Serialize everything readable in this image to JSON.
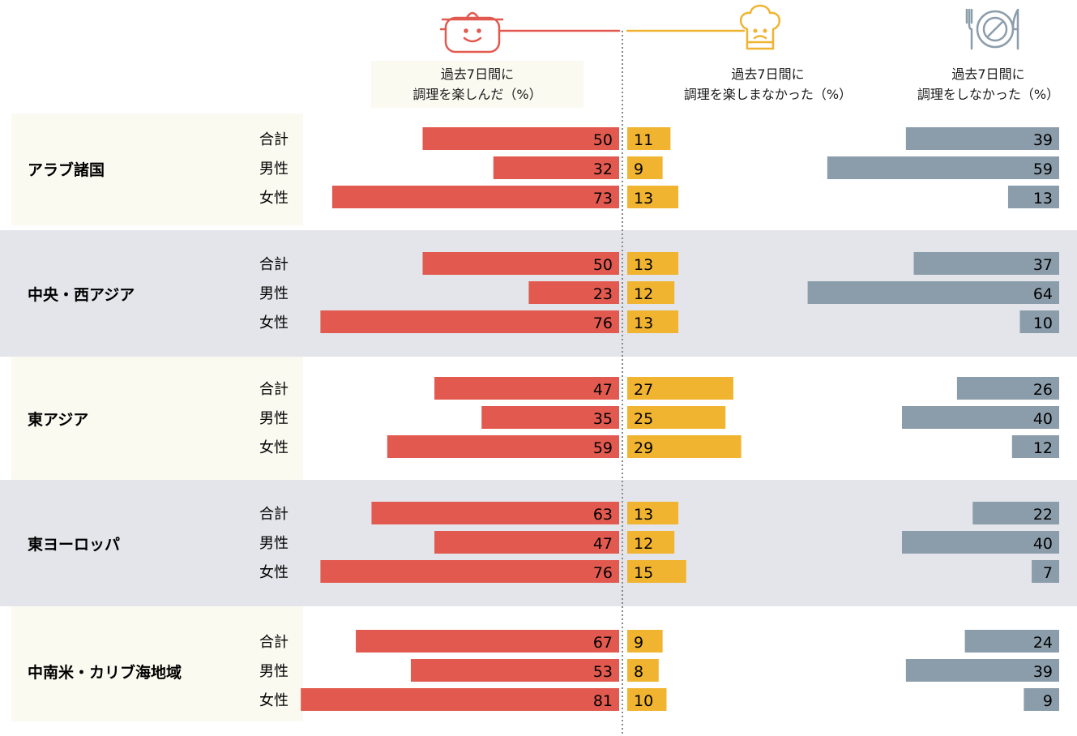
{
  "chart_data": {
    "type": "bar",
    "columns": [
      {
        "key": "enjoyed",
        "line1": "過去7日間に",
        "line2": "調理を楽しんだ（%）",
        "color": "#e25a4f",
        "icon": "smiling-pot-icon"
      },
      {
        "key": "not_enjoyed",
        "line1": "過去7日間に",
        "line2": "調理を楽しまなかった（%）",
        "color": "#f0b431",
        "icon": "frowning-chef-hat-icon"
      },
      {
        "key": "not_cooked",
        "line1": "過去7日間に",
        "line2": "調理をしなかった（%）",
        "color": "#8b9dab",
        "icon": "plate-fork-knife-icon"
      }
    ],
    "regions": [
      {
        "name": "アラブ諸国",
        "rows": [
          {
            "label": "合計",
            "enjoyed": 50,
            "not_enjoyed": 11,
            "not_cooked": 39
          },
          {
            "label": "男性",
            "enjoyed": 32,
            "not_enjoyed": 9,
            "not_cooked": 59
          },
          {
            "label": "女性",
            "enjoyed": 73,
            "not_enjoyed": 13,
            "not_cooked": 13
          }
        ]
      },
      {
        "name": "中央・西アジア",
        "rows": [
          {
            "label": "合計",
            "enjoyed": 50,
            "not_enjoyed": 13,
            "not_cooked": 37
          },
          {
            "label": "男性",
            "enjoyed": 23,
            "not_enjoyed": 12,
            "not_cooked": 64
          },
          {
            "label": "女性",
            "enjoyed": 76,
            "not_enjoyed": 13,
            "not_cooked": 10
          }
        ]
      },
      {
        "name": "東アジア",
        "rows": [
          {
            "label": "合計",
            "enjoyed": 47,
            "not_enjoyed": 27,
            "not_cooked": 26
          },
          {
            "label": "男性",
            "enjoyed": 35,
            "not_enjoyed": 25,
            "not_cooked": 40
          },
          {
            "label": "女性",
            "enjoyed": 59,
            "not_enjoyed": 29,
            "not_cooked": 12
          }
        ]
      },
      {
        "name": "東ヨーロッパ",
        "rows": [
          {
            "label": "合計",
            "enjoyed": 63,
            "not_enjoyed": 13,
            "not_cooked": 22
          },
          {
            "label": "男性",
            "enjoyed": 47,
            "not_enjoyed": 12,
            "not_cooked": 40
          },
          {
            "label": "女性",
            "enjoyed": 76,
            "not_enjoyed": 15,
            "not_cooked": 7
          }
        ]
      },
      {
        "name": "中南米・カリブ海地域",
        "rows": [
          {
            "label": "合計",
            "enjoyed": 67,
            "not_enjoyed": 9,
            "not_cooked": 24
          },
          {
            "label": "男性",
            "enjoyed": 53,
            "not_enjoyed": 8,
            "not_cooked": 39
          },
          {
            "label": "女性",
            "enjoyed": 81,
            "not_enjoyed": 10,
            "not_cooked": 9
          }
        ]
      }
    ],
    "band_colors": [
      "#fbfaf1",
      "#e3e5ea"
    ]
  }
}
